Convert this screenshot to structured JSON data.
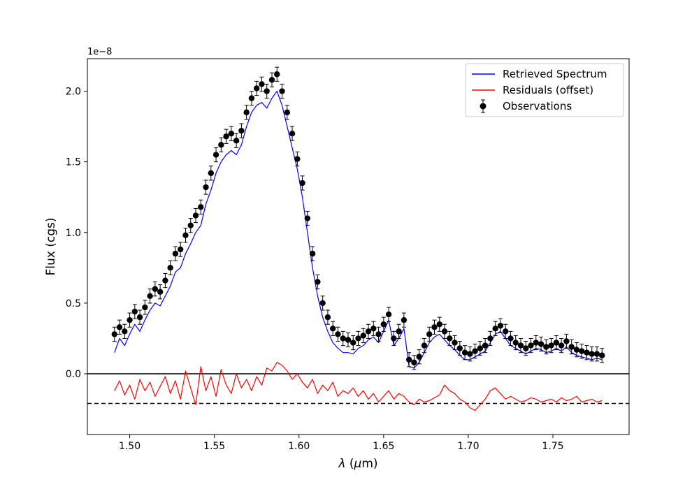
{
  "chart_data": {
    "type": "line",
    "xlabel": "λ (μm)",
    "ylabel": "Flux (cgs)",
    "y_scale_label": "1e−8",
    "y_scale_factor": 1e-08,
    "xlim": [
      1.475,
      1.795
    ],
    "ylim": [
      -0.43,
      2.23
    ],
    "xticks": [
      1.5,
      1.55,
      1.6,
      1.65,
      1.7,
      1.75
    ],
    "xtick_labels": [
      "1.50",
      "1.55",
      "1.60",
      "1.65",
      "1.70",
      "1.75"
    ],
    "yticks": [
      0.0,
      0.5,
      1.0,
      1.5,
      2.0
    ],
    "ytick_labels": [
      "0.0",
      "0.5",
      "1.0",
      "1.5",
      "2.0"
    ],
    "legend": {
      "position": "upper right",
      "entries": [
        "Retrieved Spectrum",
        "Residuals (offset)",
        "Observations"
      ]
    },
    "reference_lines": [
      {
        "name": "zero",
        "y": 0.0,
        "style": "solid"
      },
      {
        "name": "residual-offset",
        "y": -0.21,
        "style": "dashed"
      }
    ],
    "series": [
      {
        "name": "Observations",
        "style": "errorbar",
        "color": "#000000",
        "x": [
          1.491,
          1.494,
          1.497,
          1.5,
          1.503,
          1.506,
          1.509,
          1.512,
          1.515,
          1.518,
          1.521,
          1.524,
          1.527,
          1.53,
          1.533,
          1.536,
          1.539,
          1.542,
          1.545,
          1.548,
          1.551,
          1.554,
          1.557,
          1.56,
          1.563,
          1.566,
          1.569,
          1.572,
          1.575,
          1.578,
          1.581,
          1.584,
          1.587,
          1.59,
          1.593,
          1.596,
          1.599,
          1.602,
          1.605,
          1.608,
          1.611,
          1.614,
          1.617,
          1.62,
          1.623,
          1.626,
          1.629,
          1.632,
          1.635,
          1.638,
          1.641,
          1.644,
          1.647,
          1.65,
          1.653,
          1.656,
          1.659,
          1.662,
          1.665,
          1.668,
          1.671,
          1.674,
          1.677,
          1.68,
          1.683,
          1.686,
          1.689,
          1.692,
          1.695,
          1.698,
          1.701,
          1.704,
          1.707,
          1.71,
          1.713,
          1.716,
          1.719,
          1.722,
          1.725,
          1.728,
          1.731,
          1.734,
          1.737,
          1.74,
          1.743,
          1.746,
          1.749,
          1.752,
          1.755,
          1.758,
          1.761,
          1.764,
          1.767,
          1.77,
          1.773,
          1.776,
          1.779
        ],
        "y": [
          0.28,
          0.33,
          0.3,
          0.38,
          0.44,
          0.4,
          0.47,
          0.55,
          0.6,
          0.58,
          0.66,
          0.75,
          0.85,
          0.88,
          0.98,
          1.05,
          1.12,
          1.18,
          1.32,
          1.42,
          1.55,
          1.62,
          1.68,
          1.7,
          1.65,
          1.72,
          1.85,
          1.95,
          2.02,
          2.05,
          2.0,
          2.08,
          2.12,
          2.0,
          1.85,
          1.7,
          1.52,
          1.35,
          1.1,
          0.85,
          0.65,
          0.5,
          0.4,
          0.32,
          0.28,
          0.25,
          0.24,
          0.22,
          0.25,
          0.27,
          0.3,
          0.32,
          0.28,
          0.35,
          0.42,
          0.25,
          0.3,
          0.38,
          0.1,
          0.08,
          0.12,
          0.2,
          0.28,
          0.33,
          0.35,
          0.3,
          0.25,
          0.22,
          0.18,
          0.15,
          0.14,
          0.16,
          0.18,
          0.2,
          0.25,
          0.32,
          0.34,
          0.3,
          0.25,
          0.22,
          0.2,
          0.18,
          0.2,
          0.22,
          0.21,
          0.19,
          0.2,
          0.22,
          0.2,
          0.23,
          0.19,
          0.17,
          0.16,
          0.15,
          0.14,
          0.14,
          0.13
        ],
        "yerr": 0.05
      },
      {
        "name": "Retrieved Spectrum",
        "style": "line",
        "color": "#0000ff",
        "x": [
          1.491,
          1.494,
          1.497,
          1.5,
          1.503,
          1.506,
          1.509,
          1.512,
          1.515,
          1.518,
          1.521,
          1.524,
          1.527,
          1.53,
          1.533,
          1.536,
          1.539,
          1.542,
          1.545,
          1.548,
          1.551,
          1.554,
          1.557,
          1.56,
          1.563,
          1.566,
          1.569,
          1.572,
          1.575,
          1.578,
          1.581,
          1.584,
          1.587,
          1.59,
          1.593,
          1.596,
          1.599,
          1.602,
          1.605,
          1.608,
          1.611,
          1.614,
          1.617,
          1.62,
          1.623,
          1.626,
          1.629,
          1.632,
          1.635,
          1.638,
          1.641,
          1.644,
          1.647,
          1.65,
          1.653,
          1.656,
          1.659,
          1.662,
          1.665,
          1.668,
          1.671,
          1.674,
          1.677,
          1.68,
          1.683,
          1.686,
          1.689,
          1.692,
          1.695,
          1.698,
          1.701,
          1.704,
          1.707,
          1.71,
          1.713,
          1.716,
          1.719,
          1.722,
          1.725,
          1.728,
          1.731,
          1.734,
          1.737,
          1.74,
          1.743,
          1.746,
          1.749,
          1.752,
          1.755,
          1.758,
          1.761,
          1.764,
          1.767,
          1.77,
          1.773,
          1.776,
          1.779
        ],
        "y": [
          0.15,
          0.25,
          0.2,
          0.28,
          0.35,
          0.3,
          0.38,
          0.45,
          0.5,
          0.48,
          0.55,
          0.62,
          0.72,
          0.75,
          0.85,
          0.92,
          1.0,
          1.05,
          1.2,
          1.3,
          1.42,
          1.5,
          1.55,
          1.58,
          1.55,
          1.62,
          1.75,
          1.85,
          1.9,
          1.92,
          1.88,
          1.95,
          2.0,
          1.9,
          1.75,
          1.6,
          1.45,
          1.25,
          1.0,
          0.75,
          0.55,
          0.4,
          0.3,
          0.22,
          0.18,
          0.15,
          0.15,
          0.14,
          0.18,
          0.2,
          0.24,
          0.26,
          0.22,
          0.3,
          0.38,
          0.2,
          0.25,
          0.32,
          0.05,
          0.04,
          0.08,
          0.15,
          0.22,
          0.26,
          0.28,
          0.24,
          0.2,
          0.17,
          0.13,
          0.1,
          0.1,
          0.12,
          0.14,
          0.16,
          0.22,
          0.28,
          0.3,
          0.25,
          0.2,
          0.18,
          0.16,
          0.14,
          0.16,
          0.18,
          0.17,
          0.15,
          0.16,
          0.18,
          0.16,
          0.19,
          0.15,
          0.13,
          0.12,
          0.11,
          0.1,
          0.11,
          0.1
        ]
      },
      {
        "name": "Residuals (offset)",
        "style": "line",
        "color": "#ff0000",
        "x": [
          1.491,
          1.494,
          1.497,
          1.5,
          1.503,
          1.506,
          1.509,
          1.512,
          1.515,
          1.518,
          1.521,
          1.524,
          1.527,
          1.53,
          1.533,
          1.536,
          1.539,
          1.542,
          1.545,
          1.548,
          1.551,
          1.554,
          1.557,
          1.56,
          1.563,
          1.566,
          1.569,
          1.572,
          1.575,
          1.578,
          1.581,
          1.584,
          1.587,
          1.59,
          1.593,
          1.596,
          1.599,
          1.602,
          1.605,
          1.608,
          1.611,
          1.614,
          1.617,
          1.62,
          1.623,
          1.626,
          1.629,
          1.632,
          1.635,
          1.638,
          1.641,
          1.644,
          1.647,
          1.65,
          1.653,
          1.656,
          1.659,
          1.662,
          1.665,
          1.668,
          1.671,
          1.674,
          1.677,
          1.68,
          1.683,
          1.686,
          1.689,
          1.692,
          1.695,
          1.698,
          1.701,
          1.704,
          1.707,
          1.71,
          1.713,
          1.716,
          1.719,
          1.722,
          1.725,
          1.728,
          1.731,
          1.734,
          1.737,
          1.74,
          1.743,
          1.746,
          1.749,
          1.752,
          1.755,
          1.758,
          1.761,
          1.764,
          1.767,
          1.77,
          1.773,
          1.776,
          1.779
        ],
        "y": [
          -0.12,
          -0.05,
          -0.15,
          -0.08,
          -0.18,
          -0.04,
          -0.12,
          -0.06,
          -0.16,
          -0.09,
          -0.02,
          -0.14,
          -0.05,
          -0.18,
          0.02,
          -0.1,
          -0.22,
          0.05,
          -0.12,
          -0.02,
          -0.16,
          0.03,
          -0.08,
          -0.14,
          0.0,
          -0.1,
          -0.04,
          -0.12,
          -0.02,
          -0.08,
          0.04,
          0.02,
          0.08,
          0.06,
          0.02,
          -0.04,
          0.0,
          -0.06,
          -0.1,
          -0.04,
          -0.14,
          -0.08,
          -0.12,
          -0.06,
          -0.16,
          -0.12,
          -0.14,
          -0.1,
          -0.16,
          -0.12,
          -0.18,
          -0.14,
          -0.2,
          -0.16,
          -0.12,
          -0.18,
          -0.14,
          -0.16,
          -0.2,
          -0.22,
          -0.18,
          -0.2,
          -0.19,
          -0.17,
          -0.15,
          -0.08,
          -0.12,
          -0.14,
          -0.18,
          -0.2,
          -0.24,
          -0.26,
          -0.22,
          -0.18,
          -0.12,
          -0.1,
          -0.14,
          -0.18,
          -0.16,
          -0.18,
          -0.2,
          -0.19,
          -0.17,
          -0.18,
          -0.2,
          -0.19,
          -0.18,
          -0.2,
          -0.17,
          -0.19,
          -0.18,
          -0.16,
          -0.2,
          -0.19,
          -0.18,
          -0.2,
          -0.19
        ]
      }
    ]
  }
}
